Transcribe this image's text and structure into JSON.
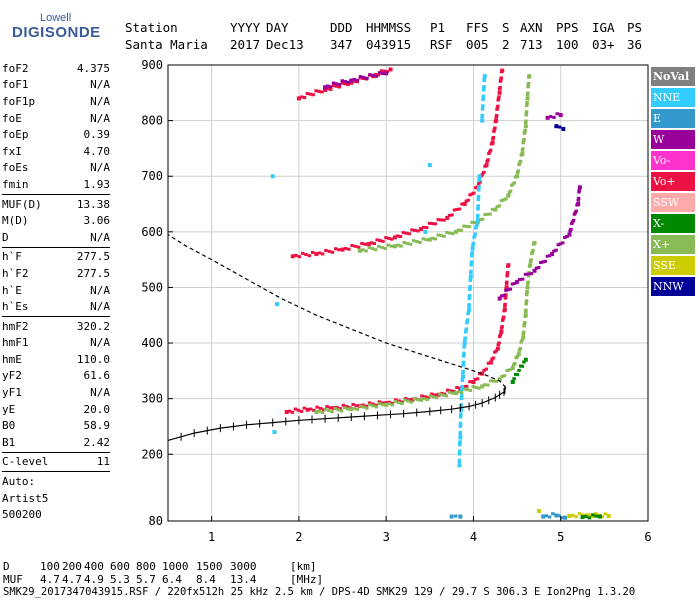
{
  "logo": {
    "top": "Lowell",
    "main": "DIGISONDE"
  },
  "header": {
    "labels": [
      "Station",
      "YYYY",
      "DAY",
      "DDD",
      "HHMMSS",
      "P1",
      "FFS",
      "S",
      "AXN",
      "PPS",
      "IGA",
      "PS"
    ],
    "values": [
      "Santa Maria",
      "2017",
      "Dec13",
      "347",
      "043915",
      "RSF",
      "005",
      "2",
      "713",
      "100",
      "03+",
      "36"
    ]
  },
  "params": [
    {
      "name": "foF2",
      "value": "4.375"
    },
    {
      "name": "foF1",
      "value": "N/A"
    },
    {
      "name": "foF1p",
      "value": "N/A"
    },
    {
      "name": "foE",
      "value": "N/A"
    },
    {
      "name": "foEp",
      "value": "0.39"
    },
    {
      "name": "fxI",
      "value": "4.70"
    },
    {
      "name": "foEs",
      "value": "N/A"
    },
    {
      "name": "fmin",
      "value": "1.93"
    },
    {
      "sep": true
    },
    {
      "name": "MUF(D)",
      "value": "13.38"
    },
    {
      "name": "M(D)",
      "value": "3.06"
    },
    {
      "name": "D",
      "value": "N/A"
    },
    {
      "sep": true
    },
    {
      "name": "h`F",
      "value": "277.5"
    },
    {
      "name": "h`F2",
      "value": "277.5"
    },
    {
      "name": "h`E",
      "value": "N/A"
    },
    {
      "name": "h`Es",
      "value": "N/A"
    },
    {
      "sep": true
    },
    {
      "name": "hmF2",
      "value": "320.2"
    },
    {
      "name": "hmF1",
      "value": "N/A"
    },
    {
      "name": "hmE",
      "value": "110.0"
    },
    {
      "name": "yF2",
      "value": "61.6"
    },
    {
      "name": "yF1",
      "value": "N/A"
    },
    {
      "name": "yE",
      "value": "20.0"
    },
    {
      "name": "B0",
      "value": "58.9"
    },
    {
      "name": "B1",
      "value": "2.42"
    },
    {
      "sep": true
    },
    {
      "name": "C-level",
      "value": "11"
    },
    {
      "sep": true
    },
    {
      "name": "Auto:",
      "value": ""
    },
    {
      "name": "Artist5",
      "value": ""
    },
    {
      "name": "500200",
      "value": ""
    }
  ],
  "legend": [
    {
      "label": "NoVal",
      "color": "#808080"
    },
    {
      "label": "NNE",
      "color": "#33ccff"
    },
    {
      "label": "E",
      "color": "#3399cc"
    },
    {
      "label": "W",
      "color": "#990099"
    },
    {
      "label": "Vo-",
      "color": "#ff33cc"
    },
    {
      "label": "Vo+",
      "color": "#ee1144"
    },
    {
      "label": "SSW",
      "color": "#ffaaaa"
    },
    {
      "label": "X-",
      "color": "#008800"
    },
    {
      "label": "X+",
      "color": "#88bb55"
    },
    {
      "label": "SSE",
      "color": "#cccc00"
    },
    {
      "label": "NNW",
      "color": "#000099"
    }
  ],
  "footer": {
    "d_label": "D",
    "d_values": [
      "100",
      "200",
      "400",
      "600",
      "800",
      "1000",
      "1500",
      "3000"
    ],
    "d_unit": "[km]",
    "muf_label": "MUF",
    "muf_values": [
      "4.7",
      "4.7",
      "4.9",
      "5.3",
      "5.7",
      "6.4",
      "8.4",
      "13.4"
    ],
    "muf_unit": "[MHz]",
    "info": "SMK29_2017347043915.RSF / 220fx512h 25 kHz 2.5 km / DPS-4D SMK29 129 / 29.7 S 306.3 E Ion2Png 1.3.20"
  },
  "chart_data": {
    "type": "scatter",
    "title": "",
    "xlabel": "",
    "ylabel": "",
    "xlim": [
      0.5,
      6.0
    ],
    "ylim": [
      80,
      900
    ],
    "xticks": [
      "1",
      "2",
      "3",
      "4",
      "5",
      "6"
    ],
    "yticks": [
      "80",
      "200",
      "300",
      "400",
      "500",
      "600",
      "700",
      "800",
      "900"
    ],
    "grid": true,
    "legend_position": "right",
    "series": [
      {
        "name": "Vo+",
        "color": "#ee1144",
        "points": [
          [
            1.86,
            276
          ],
          [
            2.1,
            280
          ],
          [
            2.4,
            283
          ],
          [
            2.7,
            287
          ],
          [
            3.0,
            292
          ],
          [
            3.3,
            298
          ],
          [
            3.6,
            307
          ],
          [
            3.85,
            318
          ],
          [
            4.0,
            330
          ],
          [
            4.1,
            345
          ],
          [
            4.2,
            365
          ],
          [
            4.28,
            390
          ],
          [
            4.32,
            420
          ],
          [
            4.36,
            460
          ],
          [
            4.38,
            500
          ],
          [
            4.4,
            540
          ],
          [
            1.93,
            556
          ],
          [
            2.2,
            560
          ],
          [
            2.5,
            568
          ],
          [
            2.8,
            578
          ],
          [
            3.1,
            590
          ],
          [
            3.4,
            605
          ],
          [
            3.7,
            625
          ],
          [
            3.9,
            650
          ],
          [
            4.05,
            680
          ],
          [
            4.15,
            720
          ],
          [
            4.22,
            760
          ],
          [
            4.26,
            800
          ],
          [
            4.3,
            850
          ],
          [
            4.33,
            890
          ],
          [
            2.0,
            840
          ],
          [
            2.3,
            855
          ],
          [
            2.6,
            868
          ],
          [
            2.85,
            880
          ],
          [
            3.05,
            892
          ]
        ]
      },
      {
        "name": "X+",
        "color": "#88bb55",
        "points": [
          [
            2.2,
            276
          ],
          [
            2.6,
            281
          ],
          [
            3.0,
            289
          ],
          [
            3.4,
            298
          ],
          [
            3.8,
            310
          ],
          [
            4.1,
            322
          ],
          [
            4.3,
            335
          ],
          [
            4.45,
            355
          ],
          [
            4.52,
            380
          ],
          [
            4.57,
            410
          ],
          [
            4.6,
            450
          ],
          [
            4.62,
            500
          ],
          [
            4.65,
            540
          ],
          [
            4.7,
            580
          ],
          [
            2.7,
            566
          ],
          [
            3.1,
            574
          ],
          [
            3.5,
            586
          ],
          [
            3.8,
            600
          ],
          [
            4.05,
            618
          ],
          [
            4.25,
            640
          ],
          [
            4.4,
            665
          ],
          [
            4.5,
            700
          ],
          [
            4.56,
            740
          ],
          [
            4.6,
            790
          ],
          [
            4.62,
            840
          ],
          [
            4.64,
            880
          ]
        ]
      },
      {
        "name": "W",
        "color": "#990099",
        "points": [
          [
            4.3,
            480
          ],
          [
            4.5,
            510
          ],
          [
            4.7,
            530
          ],
          [
            4.9,
            560
          ],
          [
            5.1,
            595
          ],
          [
            5.2,
            650
          ],
          [
            5.22,
            680
          ],
          [
            2.3,
            860
          ],
          [
            2.6,
            872
          ],
          [
            3.0,
            885
          ],
          [
            4.85,
            805
          ],
          [
            5.0,
            810
          ]
        ]
      },
      {
        "name": "NNE",
        "color": "#33ccff",
        "points": [
          [
            3.84,
            180
          ],
          [
            3.85,
            230
          ],
          [
            3.86,
            280
          ],
          [
            3.88,
            340
          ],
          [
            3.9,
            400
          ],
          [
            3.95,
            460
          ],
          [
            3.97,
            520
          ],
          [
            3.99,
            570
          ],
          [
            4.05,
            620
          ],
          [
            4.07,
            700
          ],
          [
            4.1,
            800
          ],
          [
            4.13,
            880
          ],
          [
            3.45,
            600
          ],
          [
            3.5,
            720
          ],
          [
            1.7,
            700
          ],
          [
            1.75,
            470
          ],
          [
            1.72,
            240
          ]
        ]
      },
      {
        "name": "E",
        "color": "#3399cc",
        "points": [
          [
            4.8,
            88
          ],
          [
            4.95,
            90
          ],
          [
            5.05,
            86
          ],
          [
            3.75,
            88
          ],
          [
            3.85,
            88
          ]
        ]
      },
      {
        "name": "SSE",
        "color": "#cccc00",
        "points": [
          [
            5.1,
            89
          ],
          [
            5.3,
            90
          ],
          [
            5.55,
            89
          ],
          [
            4.75,
            98
          ]
        ]
      },
      {
        "name": "X-",
        "color": "#008800",
        "points": [
          [
            5.25,
            87
          ],
          [
            5.45,
            88
          ],
          [
            4.6,
            370
          ],
          [
            4.45,
            330
          ]
        ]
      },
      {
        "name": "NNW",
        "color": "#000099",
        "points": [
          [
            4.95,
            790
          ],
          [
            5.03,
            785
          ]
        ]
      }
    ],
    "profile": [
      [
        0.5,
        225
      ],
      [
        0.8,
        238
      ],
      [
        1.1,
        247
      ],
      [
        1.4,
        253
      ],
      [
        1.7,
        257
      ],
      [
        2.0,
        261
      ],
      [
        2.3,
        264
      ],
      [
        2.6,
        267
      ],
      [
        2.9,
        270
      ],
      [
        3.2,
        273
      ],
      [
        3.5,
        277
      ],
      [
        3.75,
        281
      ],
      [
        3.95,
        286
      ],
      [
        4.1,
        292
      ],
      [
        4.25,
        302
      ],
      [
        4.35,
        312
      ],
      [
        4.37,
        320.2
      ],
      [
        4.3,
        332
      ],
      [
        4.1,
        345
      ],
      [
        3.8,
        360
      ],
      [
        3.4,
        380
      ],
      [
        3.0,
        400
      ],
      [
        2.6,
        425
      ],
      [
        2.2,
        450
      ],
      [
        1.8,
        480
      ],
      [
        1.4,
        515
      ],
      [
        1.0,
        550
      ],
      [
        0.7,
        575
      ],
      [
        0.5,
        595
      ]
    ],
    "profile_marker_end_index": 16
  }
}
